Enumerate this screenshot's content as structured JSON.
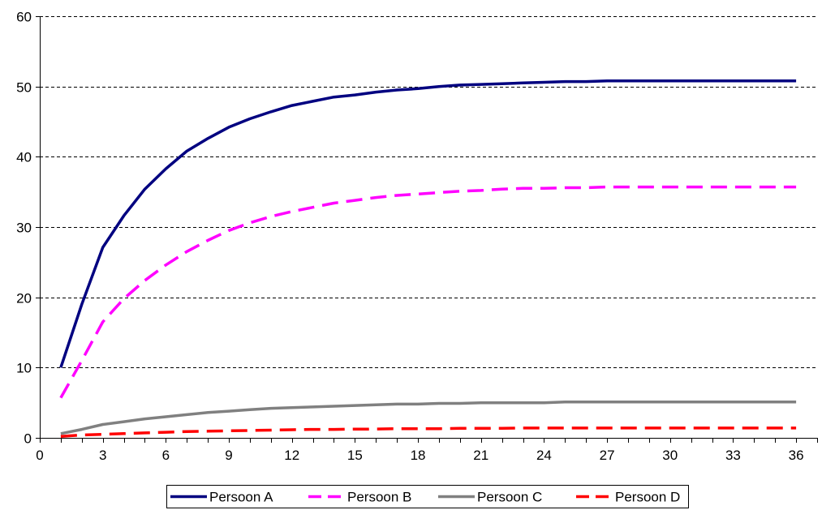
{
  "chart_data": {
    "type": "line",
    "title": "",
    "xlabel": "",
    "ylabel": "",
    "xlim": [
      0,
      37
    ],
    "ylim": [
      0,
      60
    ],
    "x_ticks": [
      0,
      3,
      6,
      9,
      12,
      15,
      18,
      21,
      24,
      27,
      30,
      33,
      36
    ],
    "y_ticks": [
      0,
      10,
      20,
      30,
      40,
      50,
      60
    ],
    "grid": "horizontal dashed",
    "legend_position": "bottom",
    "series": [
      {
        "name": "Persoon A",
        "color": "#000080",
        "dash": "solid",
        "x": [
          1,
          2,
          3,
          4,
          5,
          6,
          7,
          8,
          9,
          10,
          11,
          12,
          13,
          14,
          15,
          16,
          17,
          18,
          19,
          20,
          21,
          22,
          23,
          24,
          25,
          26,
          27,
          28,
          29,
          30,
          31,
          32,
          33,
          34,
          35,
          36
        ],
        "values": [
          10.0,
          19.0,
          27.1,
          31.6,
          35.4,
          38.3,
          40.8,
          42.6,
          44.2,
          45.4,
          46.4,
          47.3,
          47.9,
          48.5,
          48.8,
          49.2,
          49.5,
          49.7,
          50.0,
          50.2,
          50.3,
          50.4,
          50.5,
          50.6,
          50.7,
          50.7,
          50.8,
          50.8,
          50.8,
          50.8,
          50.8,
          50.8,
          50.8,
          50.8,
          50.8,
          50.8
        ]
      },
      {
        "name": "Persoon B",
        "color": "#ff00ff",
        "dash": "dashed",
        "x": [
          1,
          2,
          3,
          4,
          5,
          6,
          7,
          8,
          9,
          10,
          11,
          12,
          13,
          14,
          15,
          16,
          17,
          18,
          19,
          20,
          21,
          22,
          23,
          24,
          25,
          26,
          27,
          28,
          29,
          30,
          31,
          32,
          33,
          34,
          35,
          36
        ],
        "values": [
          5.7,
          11.0,
          16.5,
          19.8,
          22.4,
          24.6,
          26.5,
          28.1,
          29.5,
          30.6,
          31.5,
          32.2,
          32.8,
          33.4,
          33.8,
          34.2,
          34.5,
          34.7,
          34.9,
          35.1,
          35.2,
          35.4,
          35.5,
          35.5,
          35.6,
          35.6,
          35.7,
          35.7,
          35.7,
          35.7,
          35.7,
          35.7,
          35.7,
          35.7,
          35.7,
          35.7
        ]
      },
      {
        "name": "Persoon C",
        "color": "#808080",
        "dash": "solid",
        "x": [
          1,
          2,
          3,
          4,
          5,
          6,
          7,
          8,
          9,
          10,
          11,
          12,
          13,
          14,
          15,
          16,
          17,
          18,
          19,
          20,
          21,
          22,
          23,
          24,
          25,
          26,
          27,
          28,
          29,
          30,
          31,
          32,
          33,
          34,
          35,
          36
        ],
        "values": [
          0.6,
          1.2,
          1.9,
          2.3,
          2.7,
          3.0,
          3.3,
          3.6,
          3.8,
          4.0,
          4.2,
          4.3,
          4.4,
          4.5,
          4.6,
          4.7,
          4.8,
          4.8,
          4.9,
          4.9,
          5.0,
          5.0,
          5.0,
          5.0,
          5.1,
          5.1,
          5.1,
          5.1,
          5.1,
          5.1,
          5.1,
          5.1,
          5.1,
          5.1,
          5.1,
          5.1
        ]
      },
      {
        "name": "Persoon D",
        "color": "#ff0000",
        "dash": "dashed",
        "x": [
          1,
          2,
          3,
          4,
          5,
          6,
          7,
          8,
          9,
          10,
          11,
          12,
          13,
          14,
          15,
          16,
          17,
          18,
          19,
          20,
          21,
          22,
          23,
          24,
          25,
          26,
          27,
          28,
          29,
          30,
          31,
          32,
          33,
          34,
          35,
          36
        ],
        "values": [
          0.2,
          0.4,
          0.5,
          0.6,
          0.7,
          0.8,
          0.9,
          0.95,
          1.0,
          1.05,
          1.1,
          1.15,
          1.2,
          1.2,
          1.25,
          1.25,
          1.3,
          1.3,
          1.3,
          1.35,
          1.35,
          1.35,
          1.4,
          1.4,
          1.4,
          1.4,
          1.4,
          1.4,
          1.4,
          1.4,
          1.4,
          1.4,
          1.4,
          1.4,
          1.4,
          1.4
        ]
      }
    ]
  }
}
